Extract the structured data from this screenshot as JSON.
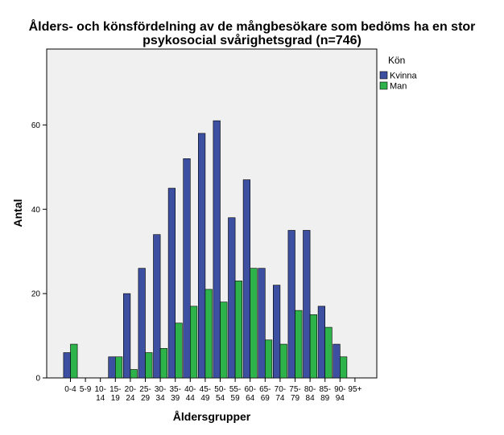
{
  "chart_data": {
    "type": "bar",
    "title": [
      "Ålders- och könsfördelning av de mångbesökare som bedöms ha en stor",
      "psykosocial svårighetsgrad (n=746)"
    ],
    "xlabel": "Åldersgrupper",
    "ylabel": "Antal",
    "ylim": [
      0,
      78
    ],
    "yticks": [
      0,
      20,
      40,
      60
    ],
    "grid": false,
    "legend_position": "top-right",
    "legend_title": "Kön",
    "categories": [
      [
        "0-4"
      ],
      [
        "5-9"
      ],
      [
        "10-",
        "14"
      ],
      [
        "15-",
        "19"
      ],
      [
        "20-",
        "24"
      ],
      [
        "25-",
        "29"
      ],
      [
        "30-",
        "34"
      ],
      [
        "35-",
        "39"
      ],
      [
        "40-",
        "44"
      ],
      [
        "45-",
        "49"
      ],
      [
        "50-",
        "54"
      ],
      [
        "55-",
        "59"
      ],
      [
        "60-",
        "64"
      ],
      [
        "65-",
        "69"
      ],
      [
        "70-",
        "74"
      ],
      [
        "75-",
        "79"
      ],
      [
        "80-",
        "84"
      ],
      [
        "85-",
        "89"
      ],
      [
        "90-",
        "94"
      ],
      [
        "95+"
      ]
    ],
    "series": [
      {
        "name": "Kvinna",
        "color": "#3d4fa0",
        "values": [
          6,
          0,
          0,
          5,
          20,
          26,
          34,
          45,
          52,
          58,
          61,
          38,
          47,
          26,
          22,
          35,
          35,
          17,
          8,
          0
        ]
      },
      {
        "name": "Man",
        "color": "#2eb34a",
        "values": [
          8,
          0,
          0,
          5,
          2,
          6,
          7,
          13,
          17,
          21,
          18,
          23,
          26,
          9,
          8,
          16,
          15,
          12,
          5,
          0
        ]
      }
    ],
    "plot_background": "#f0f0f0"
  }
}
